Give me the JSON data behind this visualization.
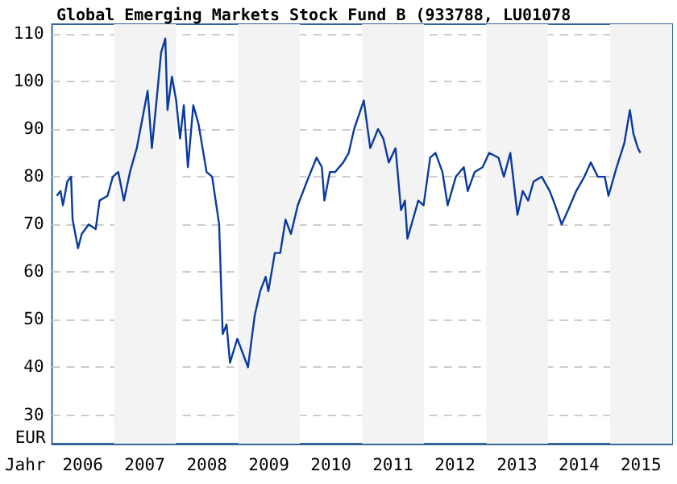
{
  "chart_data": {
    "type": "line",
    "title": "Global Emerging Markets Stock Fund B (933788, LU01078",
    "xlabel": "Jahr",
    "ylabel": "EUR",
    "x": [
      "2006-01-29",
      "2006-02-20",
      "2006-03-06",
      "2006-04-01",
      "2006-04-23",
      "2006-05-02",
      "2006-06-03",
      "2006-06-25",
      "2006-08-05",
      "2006-09-15",
      "2006-10-08",
      "2006-11-24",
      "2006-12-25",
      "2007-01-26",
      "2007-02-28",
      "2007-04-05",
      "2007-05-15",
      "2007-06-16",
      "2007-07-18",
      "2007-08-12",
      "2007-09-14",
      "2007-10-05",
      "2007-10-30",
      "2007-11-12",
      "2007-12-08",
      "2008-01-02",
      "2008-01-25",
      "2008-02-16",
      "2008-03-11",
      "2008-04-12",
      "2008-05-13",
      "2008-06-29",
      "2008-08-01",
      "2008-09-11",
      "2008-10-02",
      "2008-10-25",
      "2008-11-14",
      "2008-12-27",
      "2009-01-28",
      "2009-02-28",
      "2009-04-09",
      "2009-05-11",
      "2009-06-12",
      "2009-06-28",
      "2009-08-05",
      "2009-09-06",
      "2009-10-07",
      "2009-11-08",
      "2009-12-18",
      "2010-02-21",
      "2010-04-08",
      "2010-05-09",
      "2010-05-24",
      "2010-06-25",
      "2010-07-26",
      "2010-09-12",
      "2010-10-14",
      "2010-11-15",
      "2011-01-11",
      "2011-02-18",
      "2011-04-05",
      "2011-05-06",
      "2011-06-07",
      "2011-07-17",
      "2011-08-18",
      "2011-09-10",
      "2011-09-25",
      "2011-10-27",
      "2011-11-28",
      "2011-12-29",
      "2012-02-06",
      "2012-03-08",
      "2012-04-18",
      "2012-05-19",
      "2012-07-06",
      "2012-08-22",
      "2012-09-14",
      "2012-10-25",
      "2012-12-11",
      "2013-01-18",
      "2013-03-14",
      "2013-04-15",
      "2013-05-23",
      "2013-07-04",
      "2013-08-04",
      "2013-09-05",
      "2013-10-07",
      "2013-11-24",
      "2014-01-10",
      "2014-02-11",
      "2014-03-21",
      "2014-04-28",
      "2014-06-15",
      "2014-08-02",
      "2014-09-09",
      "2014-10-20",
      "2014-11-30",
      "2014-12-22",
      "2015-02-08",
      "2015-03-25",
      "2015-04-27",
      "2015-05-18",
      "2015-06-13",
      "2015-06-28"
    ],
    "series": [
      {
        "color": "#0a3a9e",
        "values": [
          76,
          77,
          74,
          79,
          80,
          71,
          65,
          68,
          70,
          69,
          75,
          76,
          80,
          81,
          75,
          81,
          86,
          92,
          98,
          86,
          98,
          106,
          109,
          94,
          101,
          96,
          88,
          95,
          82,
          95,
          91,
          81,
          80,
          70,
          47,
          49,
          41,
          46,
          43,
          40,
          51,
          56,
          59,
          56,
          64,
          64,
          71,
          68,
          74,
          80,
          84,
          82,
          75,
          81,
          81,
          83,
          85,
          90,
          96,
          86,
          90,
          88,
          83,
          86,
          73,
          75,
          67,
          71,
          75,
          74,
          84,
          85,
          81,
          74,
          80,
          82,
          77,
          81,
          82,
          85,
          84,
          80,
          85,
          72,
          77,
          75,
          79,
          80,
          77,
          74,
          70,
          73,
          77,
          80,
          83,
          80,
          80,
          76,
          82,
          87,
          94,
          89,
          86,
          85
        ]
      }
    ],
    "xlim": [
      "2006-01-01",
      "2016-01-01"
    ],
    "xticks": [
      {
        "value": "2006-07-01",
        "label": "2006"
      },
      {
        "value": "2007-07-01",
        "label": "2007"
      },
      {
        "value": "2008-07-01",
        "label": "2008"
      },
      {
        "value": "2009-07-01",
        "label": "2009"
      },
      {
        "value": "2010-07-01",
        "label": "2010"
      },
      {
        "value": "2011-07-01",
        "label": "2011"
      },
      {
        "value": "2012-07-01",
        "label": "2012"
      },
      {
        "value": "2013-07-01",
        "label": "2013"
      },
      {
        "value": "2014-07-01",
        "label": "2014"
      },
      {
        "value": "2015-07-01",
        "label": "2015"
      }
    ],
    "ylim": [
      24,
      112
    ],
    "yticks": [
      30,
      40,
      50,
      60,
      70,
      80,
      90,
      100,
      110
    ],
    "bands": [
      {
        "axis": "x",
        "from": "2007-01-01",
        "to": "2008-01-01",
        "label": null,
        "color": "#f3f3f3"
      },
      {
        "axis": "x",
        "from": "2009-01-01",
        "to": "2010-01-01",
        "label": null,
        "color": "#f3f3f3"
      },
      {
        "axis": "x",
        "from": "2011-01-01",
        "to": "2012-01-01",
        "label": null,
        "color": "#f3f3f3"
      },
      {
        "axis": "x",
        "from": "2013-01-01",
        "to": "2014-01-01",
        "label": null,
        "color": "#f3f3f3"
      },
      {
        "axis": "x",
        "from": "2015-01-01",
        "to": "2016-01-01",
        "label": null,
        "color": "#f3f3f3"
      }
    ],
    "grid": "y",
    "marker": "none",
    "line_style": "solid"
  }
}
